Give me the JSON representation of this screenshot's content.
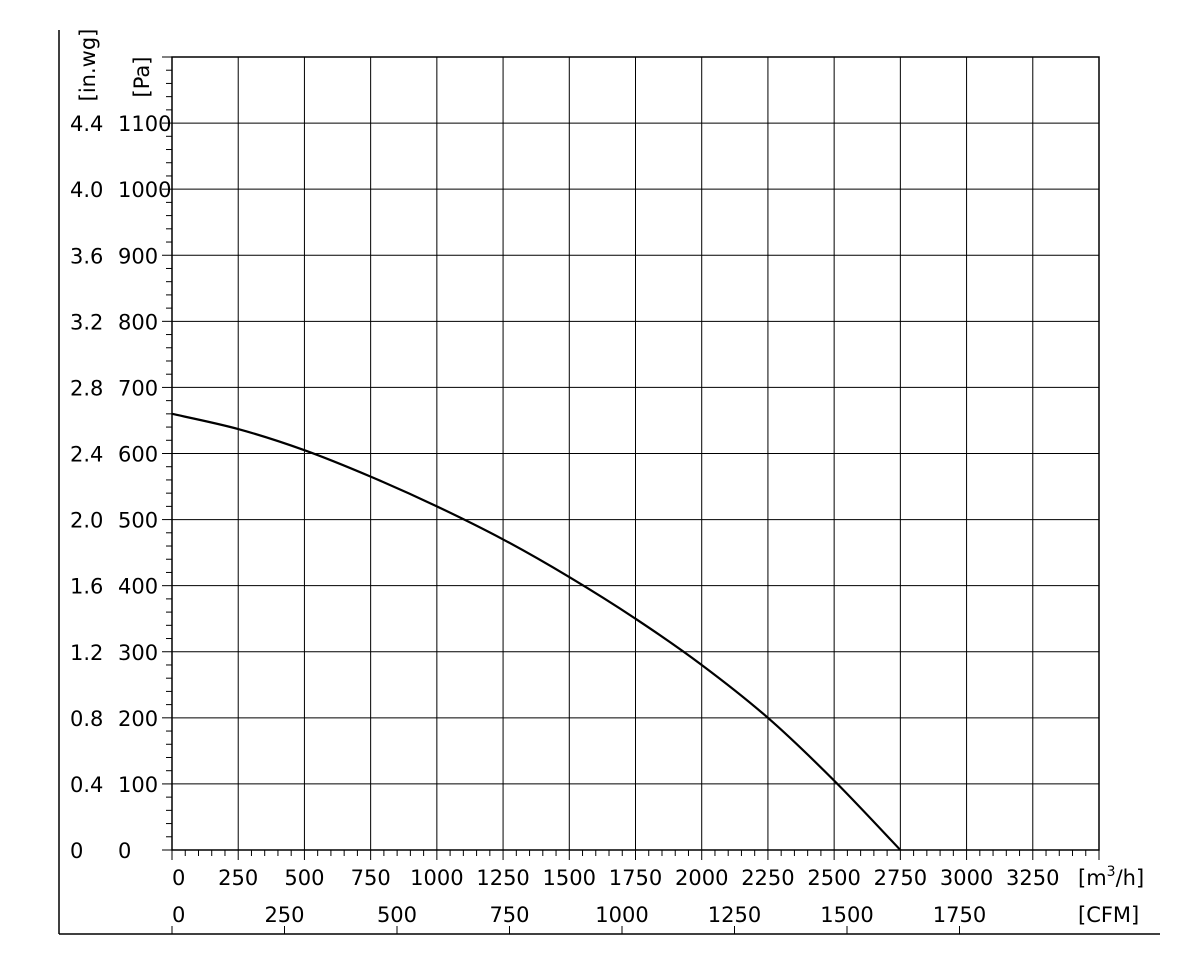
{
  "chart_data": {
    "type": "line",
    "title": "",
    "x_primary": {
      "unit_label": "[m³/h]",
      "unit_text": "[m",
      "unit_sup": "3",
      "unit_suffix": "/h]",
      "ticks": [
        0,
        250,
        500,
        750,
        1000,
        1250,
        1500,
        1750,
        2000,
        2250,
        2500,
        2750,
        3000,
        3250
      ],
      "range": [
        0,
        3500
      ]
    },
    "x_secondary": {
      "unit_label": "[CFM]",
      "ticks": [
        0,
        250,
        500,
        750,
        1000,
        1250,
        1500,
        1750
      ],
      "m3h_per_cfm": 1.699
    },
    "y_primary": {
      "unit_label": "[Pa]",
      "ticks": [
        0,
        100,
        200,
        300,
        400,
        500,
        600,
        700,
        800,
        900,
        1000,
        1100
      ],
      "range": [
        0,
        1200
      ]
    },
    "y_secondary": {
      "unit_label": "[in.wg]",
      "ticks": [
        "0",
        "0.4",
        "0.8",
        "1.2",
        "1.6",
        "2.0",
        "2.4",
        "2.8",
        "3.2",
        "3.6",
        "4.0",
        "4.4"
      ]
    },
    "grid": true,
    "legend": "none",
    "series": [
      {
        "x": [
          0,
          250,
          500,
          750,
          1000,
          1250,
          1500,
          1750,
          2000,
          2250,
          2500,
          2750
        ],
        "y": [
          660,
          637,
          605,
          565,
          520,
          470,
          413,
          350,
          280,
          200,
          105,
          0
        ]
      }
    ],
    "line_color": "#000000",
    "grid_color": "#000000"
  }
}
